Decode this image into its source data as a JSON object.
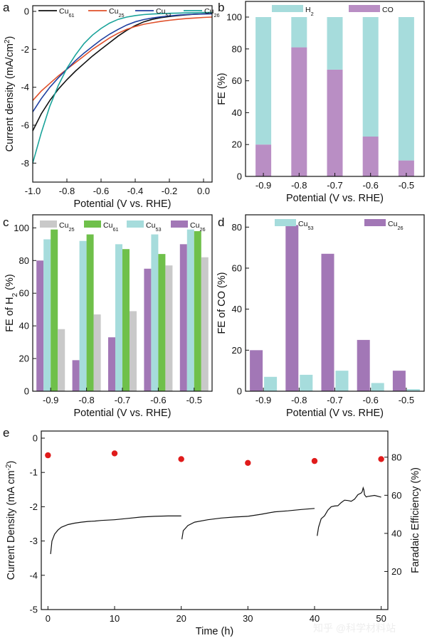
{
  "colors": {
    "cu61": "#111111",
    "cu25_line": "#e0502a",
    "cu53_line": "#1f3fa0",
    "cu26_line": "#1aa39a",
    "h2": "#a6dcdc",
    "co": "#b98ec4",
    "cu25_bar": "#c9c9c9",
    "cu61_bar": "#6fc04a",
    "cu53_bar": "#a6dcdc",
    "cu26_bar": "#a277b6",
    "fe_dot": "#e01b1b"
  },
  "watermark": "知乎 @科学材料站",
  "chart_data": [
    {
      "panel": "a",
      "type": "line",
      "xlabel": "Potential (V vs. RHE)",
      "ylabel": "Current density (mA/cm²)",
      "ylabel_main": "Current density (mA/cm",
      "ylabel_sup": "2",
      "ylabel_end": ")",
      "xlim": [
        -1.0,
        0.05
      ],
      "ylim": [
        -9,
        0.3
      ],
      "xticks": [
        "-1.0",
        "-0.8",
        "-0.6",
        "-0.4",
        "-0.2",
        "0.0"
      ],
      "yticks": [
        "0",
        "-2",
        "-4",
        "-6",
        "-8"
      ],
      "series": [
        {
          "name": "Cu61",
          "base": "Cu",
          "sub": "61",
          "x": [
            -1.0,
            -0.95,
            -0.9,
            -0.85,
            -0.8,
            -0.75,
            -0.7,
            -0.65,
            -0.6,
            -0.55,
            -0.5,
            -0.45,
            -0.4,
            -0.35,
            -0.3,
            -0.25,
            -0.2,
            -0.15,
            -0.1,
            -0.05,
            0.0,
            0.05
          ],
          "y": [
            -6.3,
            -5.4,
            -4.7,
            -4.1,
            -3.6,
            -3.15,
            -2.75,
            -2.35,
            -2.0,
            -1.65,
            -1.3,
            -1.0,
            -0.75,
            -0.55,
            -0.42,
            -0.33,
            -0.27,
            -0.22,
            -0.18,
            -0.15,
            -0.13,
            -0.12
          ]
        },
        {
          "name": "Cu25",
          "base": "Cu",
          "sub": "25",
          "x": [
            -1.0,
            -0.95,
            -0.9,
            -0.85,
            -0.8,
            -0.75,
            -0.7,
            -0.65,
            -0.6,
            -0.55,
            -0.5,
            -0.45,
            -0.4,
            -0.35,
            -0.3,
            -0.25,
            -0.2,
            -0.15,
            -0.1,
            -0.05,
            0.0,
            0.05
          ],
          "y": [
            -4.7,
            -4.2,
            -3.8,
            -3.4,
            -3.05,
            -2.7,
            -2.35,
            -2.0,
            -1.7,
            -1.4,
            -1.15,
            -0.95,
            -0.8,
            -0.68,
            -0.6,
            -0.53,
            -0.47,
            -0.42,
            -0.38,
            -0.35,
            -0.32,
            -0.3
          ]
        },
        {
          "name": "Cu53",
          "base": "Cu",
          "sub": "53",
          "x": [
            -1.0,
            -0.95,
            -0.9,
            -0.85,
            -0.8,
            -0.75,
            -0.7,
            -0.65,
            -0.6,
            -0.55,
            -0.5,
            -0.45,
            -0.4,
            -0.35,
            -0.3,
            -0.25,
            -0.2,
            -0.15,
            -0.1,
            -0.05,
            0.0,
            0.05
          ],
          "y": [
            -5.3,
            -4.6,
            -4.0,
            -3.5,
            -3.05,
            -2.6,
            -2.2,
            -1.85,
            -1.5,
            -1.2,
            -0.95,
            -0.72,
            -0.55,
            -0.43,
            -0.35,
            -0.29,
            -0.24,
            -0.2,
            -0.17,
            -0.15,
            -0.14,
            -0.13
          ]
        },
        {
          "name": "Cu26",
          "base": "Cu",
          "sub": "26",
          "x": [
            -1.0,
            -0.95,
            -0.9,
            -0.85,
            -0.8,
            -0.75,
            -0.7,
            -0.65,
            -0.6,
            -0.55,
            -0.5,
            -0.45,
            -0.4,
            -0.35,
            -0.3,
            -0.25,
            -0.2,
            -0.15,
            -0.1,
            -0.05,
            0.0,
            0.05
          ],
          "y": [
            -8.0,
            -6.4,
            -5.0,
            -3.9,
            -3.0,
            -2.3,
            -1.7,
            -1.25,
            -0.9,
            -0.62,
            -0.42,
            -0.3,
            -0.22,
            -0.17,
            -0.14,
            -0.12,
            -0.1,
            -0.09,
            -0.08,
            -0.07,
            -0.06,
            -0.06
          ]
        }
      ]
    },
    {
      "panel": "b",
      "type": "bar",
      "stacked": true,
      "xlabel": "Potential (V vs. RHE)",
      "ylabel": "FE (%)",
      "ylim": [
        0,
        100
      ],
      "categories": [
        "-0.9",
        "-0.8",
        "-0.7",
        "-0.6",
        "-0.5"
      ],
      "yticks": [
        "0",
        "20",
        "40",
        "60",
        "80",
        "100"
      ],
      "series": [
        {
          "name": "H2",
          "base": "H",
          "sub": "2",
          "values": [
            80,
            19,
            33,
            75,
            90
          ]
        },
        {
          "name": "CO",
          "base": "CO",
          "sub": "",
          "values": [
            20,
            81,
            67,
            25,
            10
          ]
        }
      ]
    },
    {
      "panel": "c",
      "type": "bar",
      "xlabel": "Potential (V vs. RHE)",
      "ylabel": "FE of H₂ (%)",
      "ylabel_main": "FE of H",
      "ylabel_sub": "2",
      "ylabel_end": " (%)",
      "ylim": [
        0,
        108
      ],
      "categories": [
        "-0.9",
        "-0.8",
        "-0.7",
        "-0.6",
        "-0.5"
      ],
      "yticks": [
        "0",
        "20",
        "40",
        "60",
        "80",
        "100"
      ],
      "series": [
        {
          "name": "Cu26",
          "base": "Cu",
          "sub": "26",
          "values": [
            80,
            19,
            33,
            75,
            90
          ]
        },
        {
          "name": "Cu25",
          "base": "Cu",
          "sub": "25",
          "values": [
            38,
            47,
            49,
            77,
            82
          ]
        },
        {
          "name": "Cu53",
          "base": "Cu",
          "sub": "53",
          "values": [
            93,
            92,
            90,
            96,
            99
          ]
        },
        {
          "name": "Cu61",
          "base": "Cu",
          "sub": "61",
          "values": [
            99,
            96,
            87,
            84,
            98
          ]
        }
      ]
    },
    {
      "panel": "d",
      "type": "bar",
      "xlabel": "Potential (V vs. RHE)",
      "ylabel": "FE of CO (%)",
      "ylim": [
        0,
        86
      ],
      "categories": [
        "-0.9",
        "-0.8",
        "-0.7",
        "-0.6",
        "-0.5"
      ],
      "yticks": [
        "0",
        "20",
        "40",
        "60",
        "80"
      ],
      "series": [
        {
          "name": "Cu26",
          "base": "Cu",
          "sub": "26",
          "values": [
            20,
            81,
            67,
            25,
            10
          ]
        },
        {
          "name": "Cu53",
          "base": "Cu",
          "sub": "53",
          "values": [
            7,
            8,
            10,
            4,
            1
          ]
        }
      ]
    },
    {
      "panel": "e",
      "type": "line",
      "xlabel": "Time (h)",
      "ylabel": "Current Density (mA cm⁻²)",
      "ylabel_main": "Current Density (mA cm",
      "ylabel_sup": "-2",
      "ylabel_end": ")",
      "y2label": "Faradaic Efficiency (%)",
      "xlim": [
        -1,
        51
      ],
      "ylim": [
        -5,
        0
      ],
      "y2lim": [
        0,
        90
      ],
      "xticks": [
        "0",
        "10",
        "20",
        "30",
        "40",
        "50"
      ],
      "yticks": [
        "0",
        "-1",
        "-2",
        "-3",
        "-4",
        "-5"
      ],
      "y2ticks": [
        "20",
        "40",
        "60",
        "80"
      ],
      "current": [
        {
          "x": [
            0.4,
            0.6,
            1,
            1.5,
            2,
            3,
            4,
            5,
            6,
            7,
            8,
            9,
            10
          ],
          "y": [
            -3.38,
            -3.0,
            -2.8,
            -2.68,
            -2.6,
            -2.52,
            -2.48,
            -2.45,
            -2.43,
            -2.42,
            -2.4,
            -2.39,
            -2.38
          ]
        },
        {
          "x": [
            10,
            12,
            14,
            16,
            18,
            20
          ],
          "y": [
            -2.38,
            -2.34,
            -2.3,
            -2.28,
            -2.27,
            -2.27
          ]
        },
        {
          "x": [
            20.1,
            20.3,
            21,
            22,
            24,
            26,
            28,
            30
          ],
          "y": [
            -2.95,
            -2.7,
            -2.55,
            -2.45,
            -2.38,
            -2.33,
            -2.3,
            -2.28
          ]
        },
        {
          "x": [
            30,
            32,
            34,
            36,
            38,
            40
          ],
          "y": [
            -2.28,
            -2.22,
            -2.15,
            -2.12,
            -2.08,
            -2.05
          ]
        },
        {
          "x": [
            40.4,
            40.6,
            41,
            42,
            43,
            44,
            45,
            46,
            47,
            47.3,
            47.5,
            48,
            50
          ],
          "y": [
            -2.85,
            -2.6,
            -2.35,
            -2.1,
            -1.98,
            -1.88,
            -1.82,
            -1.78,
            -1.6,
            -1.45,
            -1.65,
            -1.7,
            -1.72
          ]
        }
      ],
      "fe": {
        "x": [
          0,
          10,
          20,
          30,
          40,
          50
        ],
        "y": [
          81,
          82,
          79,
          77,
          78,
          79
        ]
      }
    }
  ]
}
